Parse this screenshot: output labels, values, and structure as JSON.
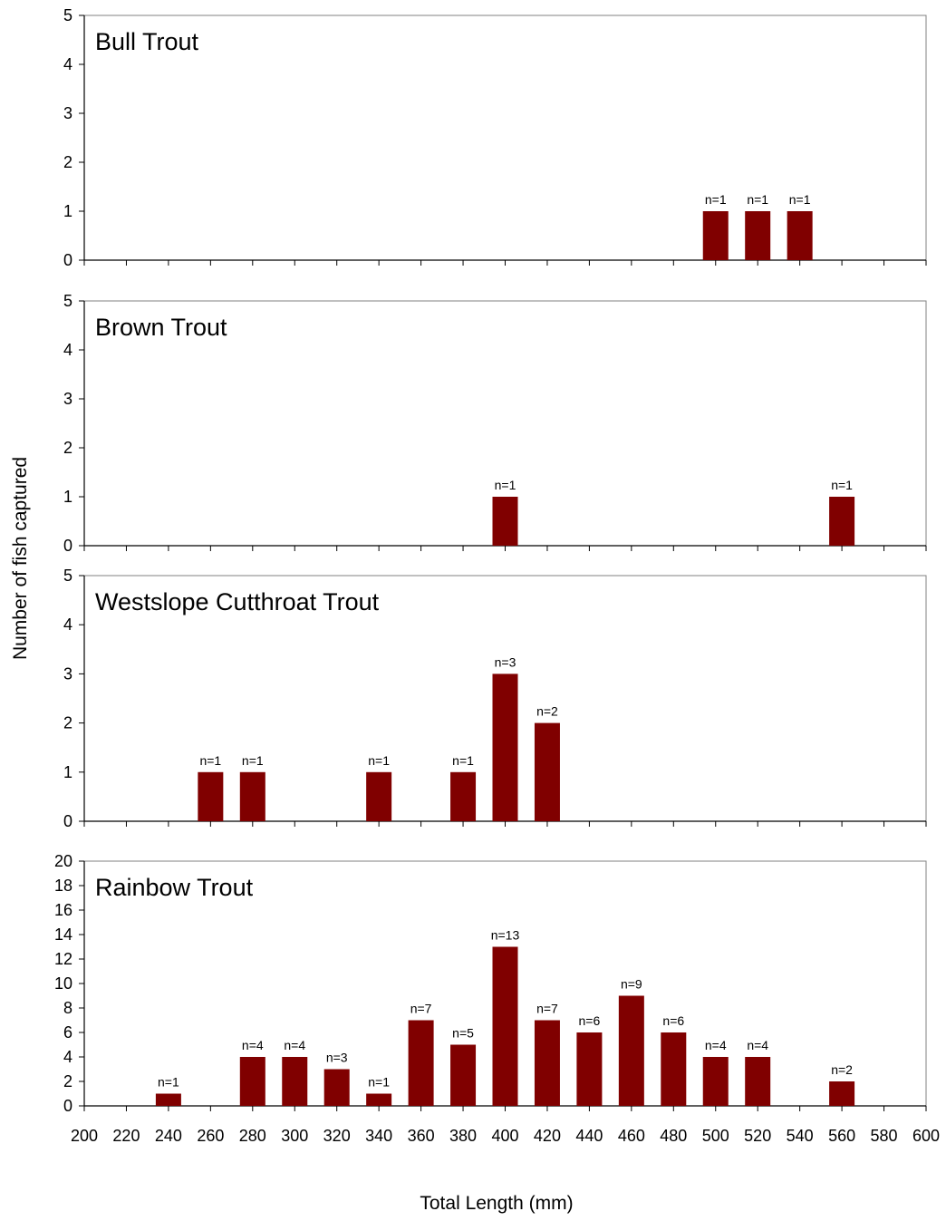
{
  "chart_data": [
    {
      "type": "bar",
      "title": "Bull Trout",
      "ylim": [
        0,
        5
      ],
      "yticks": [
        0,
        1,
        2,
        3,
        4,
        5
      ],
      "xlim": [
        200,
        600
      ],
      "bar_color": "#800000",
      "points": [
        {
          "x": 500,
          "value": 1,
          "label": "n=1"
        },
        {
          "x": 520,
          "value": 1,
          "label": "n=1"
        },
        {
          "x": 540,
          "value": 1,
          "label": "n=1"
        }
      ]
    },
    {
      "type": "bar",
      "title": "Brown Trout",
      "ylim": [
        0,
        5
      ],
      "yticks": [
        0,
        1,
        2,
        3,
        4,
        5
      ],
      "xlim": [
        200,
        600
      ],
      "bar_color": "#800000",
      "points": [
        {
          "x": 400,
          "value": 1,
          "label": "n=1"
        },
        {
          "x": 560,
          "value": 1,
          "label": "n=1"
        }
      ]
    },
    {
      "type": "bar",
      "title": "Westslope Cutthroat Trout",
      "ylim": [
        0,
        5
      ],
      "yticks": [
        0,
        1,
        2,
        3,
        4,
        5
      ],
      "xlim": [
        200,
        600
      ],
      "bar_color": "#800000",
      "points": [
        {
          "x": 260,
          "value": 1,
          "label": "n=1"
        },
        {
          "x": 280,
          "value": 1,
          "label": "n=1"
        },
        {
          "x": 340,
          "value": 1,
          "label": "n=1"
        },
        {
          "x": 380,
          "value": 1,
          "label": "n=1"
        },
        {
          "x": 400,
          "value": 3,
          "label": "n=3"
        },
        {
          "x": 420,
          "value": 2,
          "label": "n=2"
        }
      ]
    },
    {
      "type": "bar",
      "title": "Rainbow Trout",
      "ylim": [
        0,
        20
      ],
      "yticks": [
        0,
        2,
        4,
        6,
        8,
        10,
        12,
        14,
        16,
        18,
        20
      ],
      "xlim": [
        200,
        600
      ],
      "bar_color": "#800000",
      "points": [
        {
          "x": 240,
          "value": 1,
          "label": "n=1"
        },
        {
          "x": 280,
          "value": 4,
          "label": "n=4"
        },
        {
          "x": 300,
          "value": 4,
          "label": "n=4"
        },
        {
          "x": 320,
          "value": 3,
          "label": "n=3"
        },
        {
          "x": 340,
          "value": 1,
          "label": "n=1"
        },
        {
          "x": 360,
          "value": 7,
          "label": "n=7"
        },
        {
          "x": 380,
          "value": 5,
          "label": "n=5"
        },
        {
          "x": 400,
          "value": 13,
          "label": "n=13"
        },
        {
          "x": 420,
          "value": 7,
          "label": "n=7"
        },
        {
          "x": 440,
          "value": 6,
          "label": "n=6"
        },
        {
          "x": 460,
          "value": 9,
          "label": "n=9"
        },
        {
          "x": 480,
          "value": 6,
          "label": "n=6"
        },
        {
          "x": 500,
          "value": 4,
          "label": "n=4"
        },
        {
          "x": 520,
          "value": 4,
          "label": "n=4"
        },
        {
          "x": 560,
          "value": 2,
          "label": "n=2"
        }
      ]
    }
  ],
  "shared_axes": {
    "xlabel": "Total Length (mm)",
    "ylabel": "Number of fish captured",
    "xticks": [
      200,
      220,
      240,
      260,
      280,
      300,
      320,
      340,
      360,
      380,
      400,
      420,
      440,
      460,
      480,
      500,
      520,
      540,
      560,
      580,
      600
    ]
  }
}
